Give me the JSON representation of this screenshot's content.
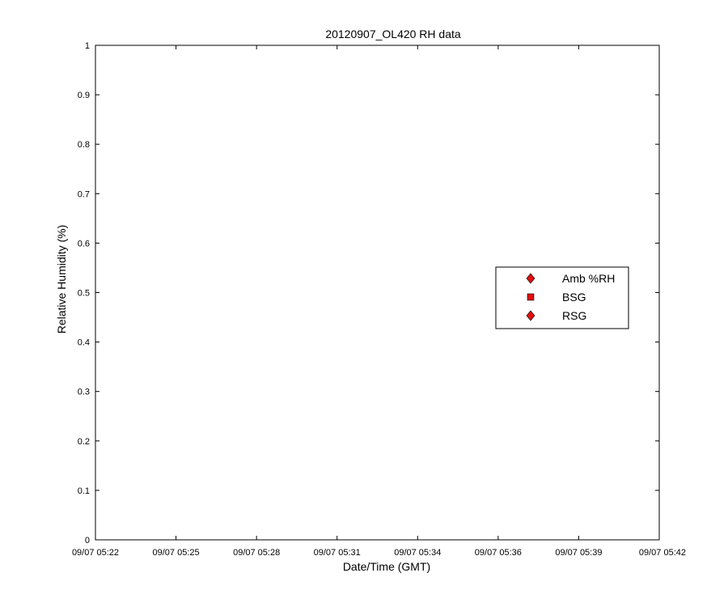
{
  "chart_data": {
    "type": "scatter",
    "title": "20120907_OL420 RH data",
    "xlabel": "Date/Time (GMT)",
    "ylabel": "Relative Humidity (%)",
    "x_ticks": [
      "09/07 05:22",
      "09/07 05:25",
      "09/07 05:28",
      "09/07 05:31",
      "09/07 05:34",
      "09/07 05:36",
      "09/07 05:39",
      "09/07 05:42"
    ],
    "y_ticks": [
      "0",
      "0.1",
      "0.2",
      "0.3",
      "0.4",
      "0.5",
      "0.6",
      "0.7",
      "0.8",
      "0.9",
      "1"
    ],
    "ylim": [
      0,
      1
    ],
    "grid": false,
    "legend_position": "right",
    "series": [
      {
        "name": "Amb %RH",
        "marker": "diamond",
        "color": "#e01010",
        "values": []
      },
      {
        "name": "BSG",
        "marker": "square",
        "color": "#e01010",
        "values": []
      },
      {
        "name": "RSG",
        "marker": "diamond",
        "color": "#e01010",
        "values": []
      }
    ]
  }
}
